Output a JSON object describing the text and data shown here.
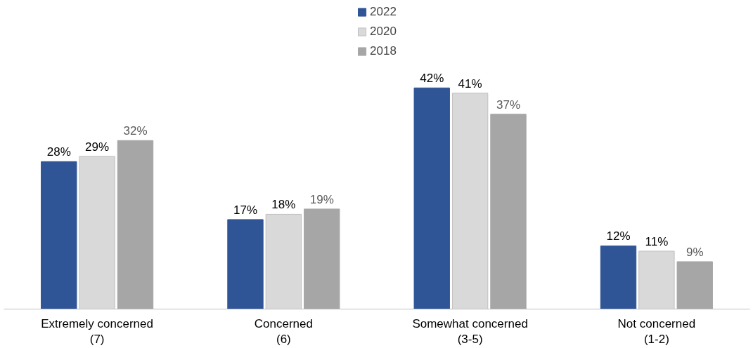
{
  "chart_data": {
    "type": "bar",
    "categories": [
      "Extremely concerned\n(7)",
      "Concerned\n(6)",
      "Somewhat concerned\n(3-5)",
      "Not concerned\n(1-2)"
    ],
    "series": [
      {
        "name": "2022",
        "color": "#2f5597",
        "values": [
          28,
          17,
          42,
          12
        ],
        "value_labels": [
          "28%",
          "17%",
          "42%",
          "12%"
        ]
      },
      {
        "name": "2020",
        "color": "#d9d9d9",
        "values": [
          29,
          18,
          41,
          11
        ],
        "value_labels": [
          "29%",
          "18%",
          "41%",
          "11%"
        ]
      },
      {
        "name": "2018",
        "color": "#a6a6a6",
        "values": [
          32,
          19,
          37,
          9
        ],
        "value_labels": [
          "32%",
          "19%",
          "37%",
          "9%"
        ]
      }
    ],
    "legend": "top",
    "grid": false
  }
}
